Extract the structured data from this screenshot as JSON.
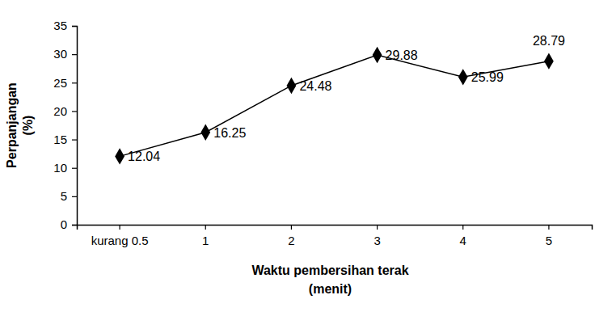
{
  "chart_data": {
    "type": "line",
    "xlabel": [
      "Waktu pembersihan terak",
      "(menit)"
    ],
    "ylabel": [
      "Perpanjangan",
      "(%)"
    ],
    "categories": [
      "kurang 0.5",
      "1",
      "2",
      "3",
      "4",
      "5"
    ],
    "values": [
      12.04,
      16.25,
      24.48,
      29.88,
      25.99,
      28.79
    ],
    "color": "#000000",
    "marker": "diamond",
    "line_style": "solid",
    "data_labels": true,
    "grid": false,
    "ylim": [
      0,
      35
    ],
    "yticks": [
      0,
      5,
      10,
      15,
      20,
      25,
      30,
      35
    ]
  }
}
